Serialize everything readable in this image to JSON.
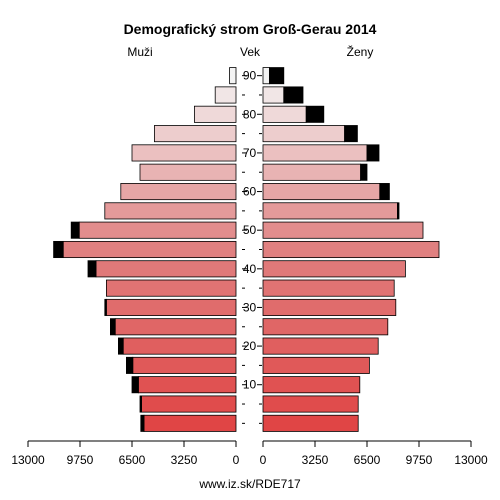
{
  "chart_data": {
    "type": "bar",
    "subtype": "population-pyramid",
    "title": "Demografický strom Groß-Gerau 2014",
    "left_label": "Muži",
    "center_label": "Vek",
    "right_label": "Ženy",
    "footer": "www.iz.sk/RDE717",
    "x_range": [
      0,
      13000
    ],
    "x_ticks_left": [
      "13000",
      "9750",
      "6500",
      "3250",
      "0"
    ],
    "x_ticks_right": [
      "0",
      "3250",
      "6500",
      "9750",
      "13000"
    ],
    "x_tick_values": [
      0,
      3250,
      6500,
      9750,
      13000
    ],
    "age_ticks": [
      "10",
      "20",
      "30",
      "40",
      "50",
      "60",
      "70",
      "80",
      "90"
    ],
    "age_groups": [
      "0-4",
      "5-9",
      "10-14",
      "15-19",
      "20-24",
      "25-29",
      "30-34",
      "35-39",
      "40-44",
      "45-49",
      "50-54",
      "55-59",
      "60-64",
      "65-69",
      "70-74",
      "75-79",
      "80-84",
      "85-89",
      "90+"
    ],
    "series": [
      {
        "name": "Muži",
        "values": [
          5750,
          5900,
          6100,
          6450,
          7050,
          7550,
          8100,
          8100,
          8750,
          10800,
          9800,
          8200,
          7200,
          6000,
          6500,
          5100,
          2600,
          1300,
          400
        ],
        "excess": [
          200,
          100,
          400,
          400,
          300,
          300,
          100,
          0,
          500,
          600,
          500,
          0,
          0,
          0,
          0,
          0,
          0,
          0,
          0
        ]
      },
      {
        "name": "Ženy",
        "values": [
          5950,
          5950,
          6050,
          6650,
          7200,
          7800,
          8300,
          8200,
          8900,
          11000,
          10000,
          8400,
          7300,
          6100,
          6500,
          5100,
          2700,
          1300,
          400
        ],
        "excess": [
          0,
          0,
          0,
          0,
          0,
          0,
          0,
          0,
          0,
          0,
          0,
          100,
          600,
          400,
          750,
          800,
          1100,
          1200,
          900
        ]
      }
    ],
    "colors": {
      "young": "#e04545",
      "mid": "#e08080",
      "old": "#f3f3f3",
      "excess": "#000000"
    },
    "grid": false,
    "legend": "none"
  }
}
